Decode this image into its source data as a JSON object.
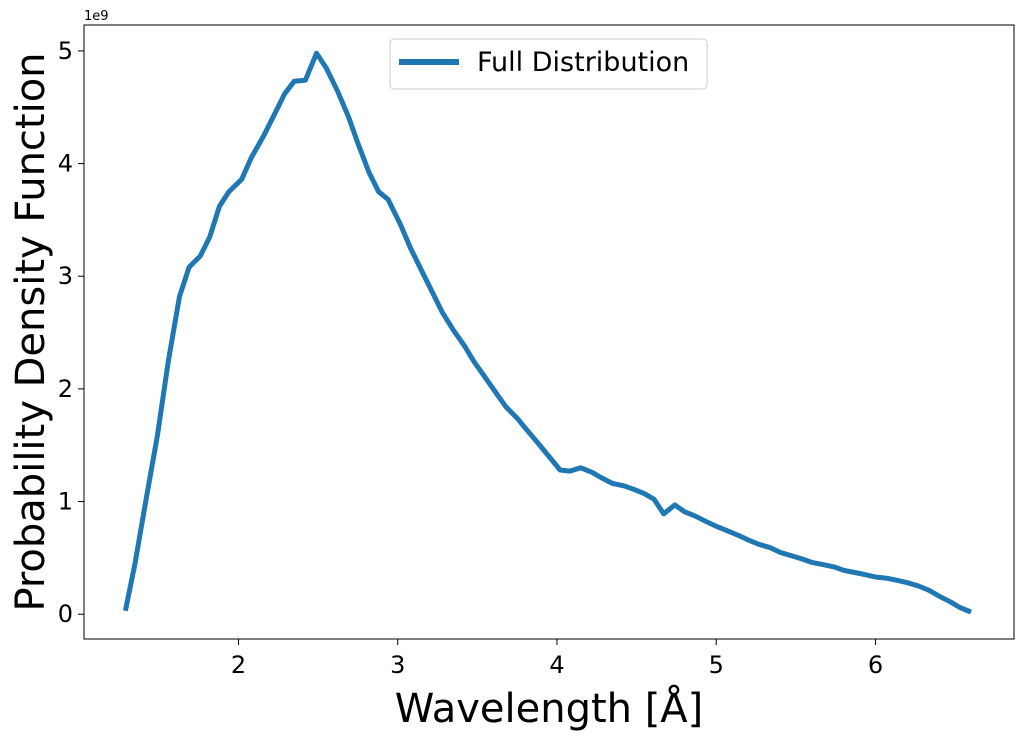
{
  "chart_data": {
    "type": "line",
    "title": "",
    "xlabel": "Wavelength [Å]",
    "ylabel": "Probability Density Function",
    "y_offset_label": "1e9",
    "y_scale": 1000000000,
    "xlim": [
      1.03,
      6.87
    ],
    "ylim": [
      -0.22,
      5.23
    ],
    "x_ticks": [
      2,
      3,
      4,
      5,
      6
    ],
    "x_tick_labels": [
      "2",
      "3",
      "4",
      "5",
      "6"
    ],
    "y_ticks": [
      0,
      1,
      2,
      3,
      4,
      5
    ],
    "y_tick_labels": [
      "0",
      "1",
      "2",
      "3",
      "4",
      "5"
    ],
    "grid": false,
    "legend_position": "upper center",
    "series": [
      {
        "name": "Full Distribution",
        "color": "#1f77b4",
        "x": [
          1.29,
          1.35,
          1.42,
          1.49,
          1.56,
          1.63,
          1.69,
          1.76,
          1.82,
          1.88,
          1.94,
          2.02,
          2.08,
          2.16,
          2.22,
          2.29,
          2.35,
          2.42,
          2.49,
          2.55,
          2.62,
          2.69,
          2.75,
          2.82,
          2.88,
          2.94,
          3.02,
          3.08,
          3.15,
          3.22,
          3.28,
          3.35,
          3.42,
          3.48,
          3.55,
          3.62,
          3.68,
          3.75,
          3.82,
          3.88,
          3.95,
          4.02,
          4.08,
          4.15,
          4.22,
          4.28,
          4.35,
          4.42,
          4.48,
          4.55,
          4.61,
          4.67,
          4.74,
          4.8,
          4.87,
          4.94,
          5.0,
          5.07,
          5.14,
          5.2,
          5.27,
          5.34,
          5.4,
          5.47,
          5.54,
          5.6,
          5.67,
          5.74,
          5.8,
          5.87,
          5.94,
          6.0,
          6.07,
          6.14,
          6.2,
          6.27,
          6.34,
          6.4,
          6.47,
          6.53,
          6.6
        ],
        "values": [
          0.03,
          0.45,
          1.02,
          1.58,
          2.25,
          2.82,
          3.08,
          3.18,
          3.35,
          3.62,
          3.75,
          3.86,
          4.05,
          4.25,
          4.42,
          4.62,
          4.73,
          4.74,
          4.98,
          4.85,
          4.65,
          4.42,
          4.18,
          3.92,
          3.75,
          3.68,
          3.45,
          3.25,
          3.05,
          2.85,
          2.68,
          2.52,
          2.38,
          2.24,
          2.1,
          1.96,
          1.84,
          1.74,
          1.62,
          1.52,
          1.4,
          1.28,
          1.27,
          1.3,
          1.26,
          1.21,
          1.16,
          1.14,
          1.11,
          1.07,
          1.02,
          0.89,
          0.97,
          0.91,
          0.87,
          0.82,
          0.78,
          0.74,
          0.7,
          0.66,
          0.62,
          0.59,
          0.55,
          0.52,
          0.49,
          0.46,
          0.44,
          0.42,
          0.39,
          0.37,
          0.35,
          0.33,
          0.32,
          0.3,
          0.28,
          0.25,
          0.21,
          0.16,
          0.11,
          0.06,
          0.02
        ]
      }
    ]
  }
}
